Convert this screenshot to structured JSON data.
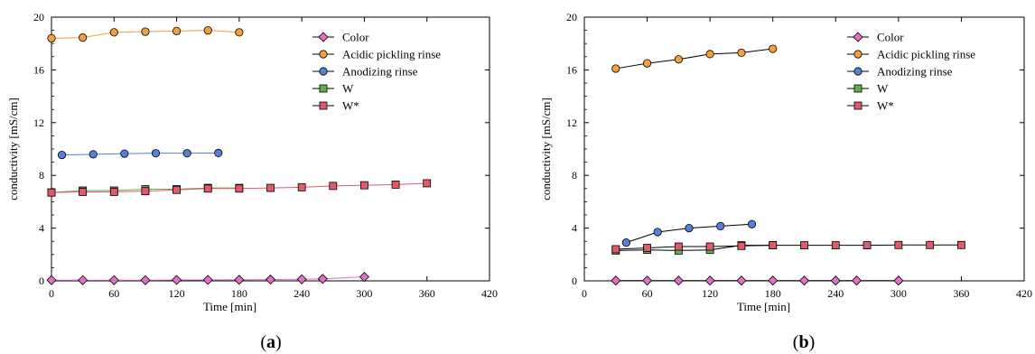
{
  "chart_data": [
    {
      "type": "line",
      "panel_label": "(a)",
      "panel_letter": "a",
      "xlabel": "Time [min]",
      "ylabel": "conductivity [mS/cm]",
      "xlim": [
        0,
        420
      ],
      "ylim": [
        0,
        20
      ],
      "xticks": [
        0,
        60,
        120,
        180,
        240,
        300,
        360,
        420
      ],
      "yticks": [
        0,
        4,
        8,
        12,
        16,
        20
      ],
      "legend_position": "top-right",
      "series": [
        {
          "name": "Color",
          "color": "#e070c8",
          "marker": "diamond",
          "x": [
            0,
            30,
            60,
            90,
            120,
            150,
            180,
            210,
            240,
            260,
            300
          ],
          "y": [
            0.05,
            0.05,
            0.05,
            0.05,
            0.07,
            0.07,
            0.08,
            0.1,
            0.12,
            0.15,
            0.3
          ]
        },
        {
          "name": "Acidic pickling rinse",
          "color": "#f0a040",
          "marker": "circle",
          "x": [
            0,
            30,
            60,
            90,
            120,
            150,
            180
          ],
          "y": [
            18.4,
            18.45,
            18.85,
            18.9,
            18.95,
            19.0,
            18.85
          ]
        },
        {
          "name": "Anodizing rinse",
          "color": "#5580d8",
          "marker": "circle",
          "x": [
            10,
            40,
            70,
            100,
            130,
            160
          ],
          "y": [
            9.55,
            9.6,
            9.65,
            9.68,
            9.68,
            9.7
          ]
        },
        {
          "name": "W",
          "color": "#60b050",
          "marker": "square",
          "x": [
            0,
            30,
            60,
            90,
            120,
            150,
            180
          ],
          "y": [
            6.7,
            6.85,
            6.85,
            6.95,
            6.95,
            7.05,
            7.05
          ]
        },
        {
          "name": "W*",
          "color": "#e05a6a",
          "marker": "square",
          "x": [
            0,
            30,
            60,
            90,
            120,
            150,
            180,
            210,
            240,
            270,
            300,
            330,
            360
          ],
          "y": [
            6.7,
            6.75,
            6.75,
            6.8,
            6.9,
            7.0,
            7.0,
            7.05,
            7.1,
            7.2,
            7.25,
            7.3,
            7.4
          ]
        }
      ]
    },
    {
      "type": "line",
      "panel_label": "(b)",
      "panel_letter": "b",
      "xlabel": "Time [min]",
      "ylabel": "conductivity [mS/cm]",
      "xlim": [
        0,
        420
      ],
      "ylim": [
        0,
        20
      ],
      "xticks": [
        0,
        60,
        120,
        180,
        240,
        300,
        360,
        420
      ],
      "yticks": [
        0,
        4,
        8,
        12,
        16,
        20
      ],
      "legend_position": "top-right",
      "series": [
        {
          "name": "Color",
          "color": "#e070c8",
          "marker": "diamond",
          "x": [
            30,
            60,
            90,
            120,
            150,
            180,
            210,
            240,
            260,
            300
          ],
          "y": [
            0.02,
            0.02,
            0.02,
            0.02,
            0.02,
            0.02,
            0.02,
            0.02,
            0.02,
            0.02
          ]
        },
        {
          "name": "Acidic pickling rinse",
          "color": "#f0a040",
          "marker": "circle",
          "x": [
            30,
            60,
            90,
            120,
            150,
            180
          ],
          "y": [
            16.1,
            16.5,
            16.8,
            17.2,
            17.3,
            17.6
          ]
        },
        {
          "name": "Anodizing rinse",
          "color": "#5580d8",
          "marker": "circle",
          "x": [
            40,
            70,
            100,
            130,
            160
          ],
          "y": [
            2.9,
            3.7,
            4.0,
            4.15,
            4.3
          ]
        },
        {
          "name": "W",
          "color": "#60b050",
          "marker": "square",
          "x": [
            30,
            60,
            90,
            120,
            150,
            180
          ],
          "y": [
            2.3,
            2.35,
            2.3,
            2.35,
            2.7,
            2.7
          ]
        },
        {
          "name": "W*",
          "color": "#e05a6a",
          "marker": "square",
          "x": [
            30,
            60,
            90,
            120,
            150,
            180,
            210,
            240,
            270,
            300,
            330,
            360
          ],
          "y": [
            2.4,
            2.5,
            2.6,
            2.6,
            2.65,
            2.7,
            2.7,
            2.7,
            2.7,
            2.72,
            2.72,
            2.72
          ]
        }
      ]
    }
  ]
}
